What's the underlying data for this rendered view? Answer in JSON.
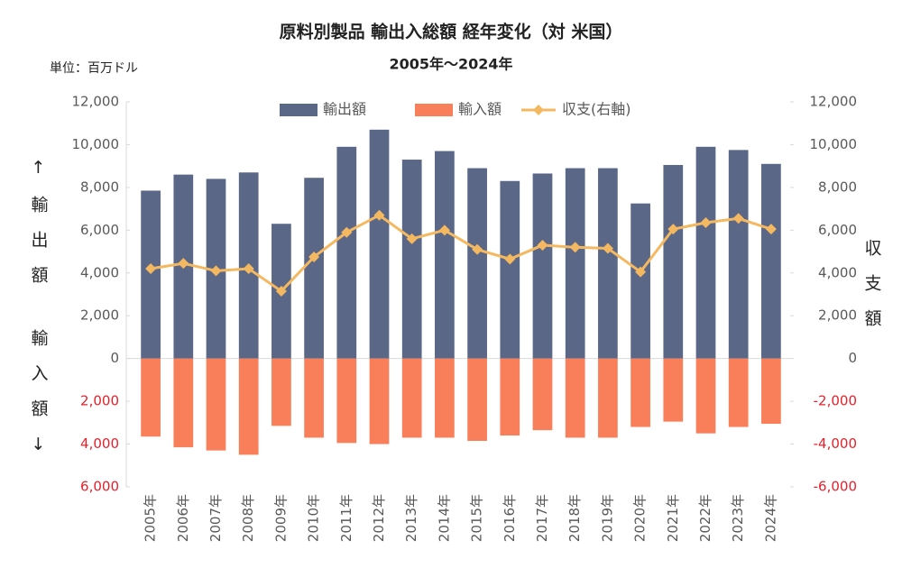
{
  "chart_data": {
    "type": "bar_line",
    "title": "原料別製品 輸出入総額 経年変化（対 米国）",
    "subtitle": "2005年～2024年",
    "unit_label": "単位：百万ドル",
    "y_label_top": "↑輸出額",
    "y_label_bottom": "輸入額↓",
    "y2_label": "収支額",
    "categories": [
      "2005年",
      "2006年",
      "2007年",
      "2008年",
      "2009年",
      "2010年",
      "2011年",
      "2012年",
      "2013年",
      "2014年",
      "2015年",
      "2016年",
      "2017年",
      "2018年",
      "2019年",
      "2020年",
      "2021年",
      "2022年",
      "2023年",
      "2024年"
    ],
    "series": [
      {
        "name": "輸出額",
        "color": "#5b6787",
        "kind": "bar",
        "values": [
          7850,
          8600,
          8400,
          8700,
          6300,
          8450,
          9900,
          10700,
          9300,
          9700,
          8900,
          8300,
          8650,
          8900,
          8900,
          7250,
          9050,
          9900,
          9750,
          9100
        ]
      },
      {
        "name": "輸入額",
        "color": "#f97f5b",
        "kind": "bar",
        "values": [
          -3650,
          -4150,
          -4300,
          -4500,
          -3150,
          -3700,
          -3950,
          -4000,
          -3700,
          -3700,
          -3850,
          -3600,
          -3350,
          -3700,
          -3700,
          -3200,
          -2950,
          -3500,
          -3200,
          -3050
        ]
      },
      {
        "name": "収支(右軸)",
        "color": "#f4b860",
        "kind": "line",
        "axis": "y2",
        "values": [
          4200,
          4450,
          4100,
          4200,
          3150,
          4750,
          5900,
          6700,
          5600,
          6000,
          5100,
          4650,
          5300,
          5200,
          5150,
          4050,
          6050,
          6350,
          6550,
          6050
        ]
      }
    ],
    "ylim": [
      -6000,
      12000
    ],
    "yticks": [
      {
        "value": -6000,
        "label": "6,000"
      },
      {
        "value": -4000,
        "label": "4,000"
      },
      {
        "value": -2000,
        "label": "2,000"
      },
      0,
      {
        "value": 2000,
        "label": "2,000"
      },
      {
        "value": 4000,
        "label": "4,000"
      },
      {
        "value": 6000,
        "label": "6,000"
      },
      {
        "value": 8000,
        "label": "8,000"
      },
      {
        "value": 10000,
        "label": "10,000"
      },
      {
        "value": 12000,
        "label": "12,000"
      }
    ],
    "y2lim": [
      -6000,
      12000
    ],
    "y2ticks": [
      {
        "value": -6000,
        "label": "-6,000"
      },
      {
        "value": -4000,
        "label": "-4,000"
      },
      {
        "value": -2000,
        "label": "-2,000"
      },
      0,
      {
        "value": 2000,
        "label": "2,000"
      },
      {
        "value": 4000,
        "label": "4,000"
      },
      {
        "value": 6000,
        "label": "6,000"
      },
      {
        "value": 8000,
        "label": "8,000"
      },
      {
        "value": 10000,
        "label": "10,000"
      },
      {
        "value": 12000,
        "label": "12,000"
      }
    ],
    "negative_tick_color": "#e8202a",
    "grid": false,
    "legend": "top"
  }
}
